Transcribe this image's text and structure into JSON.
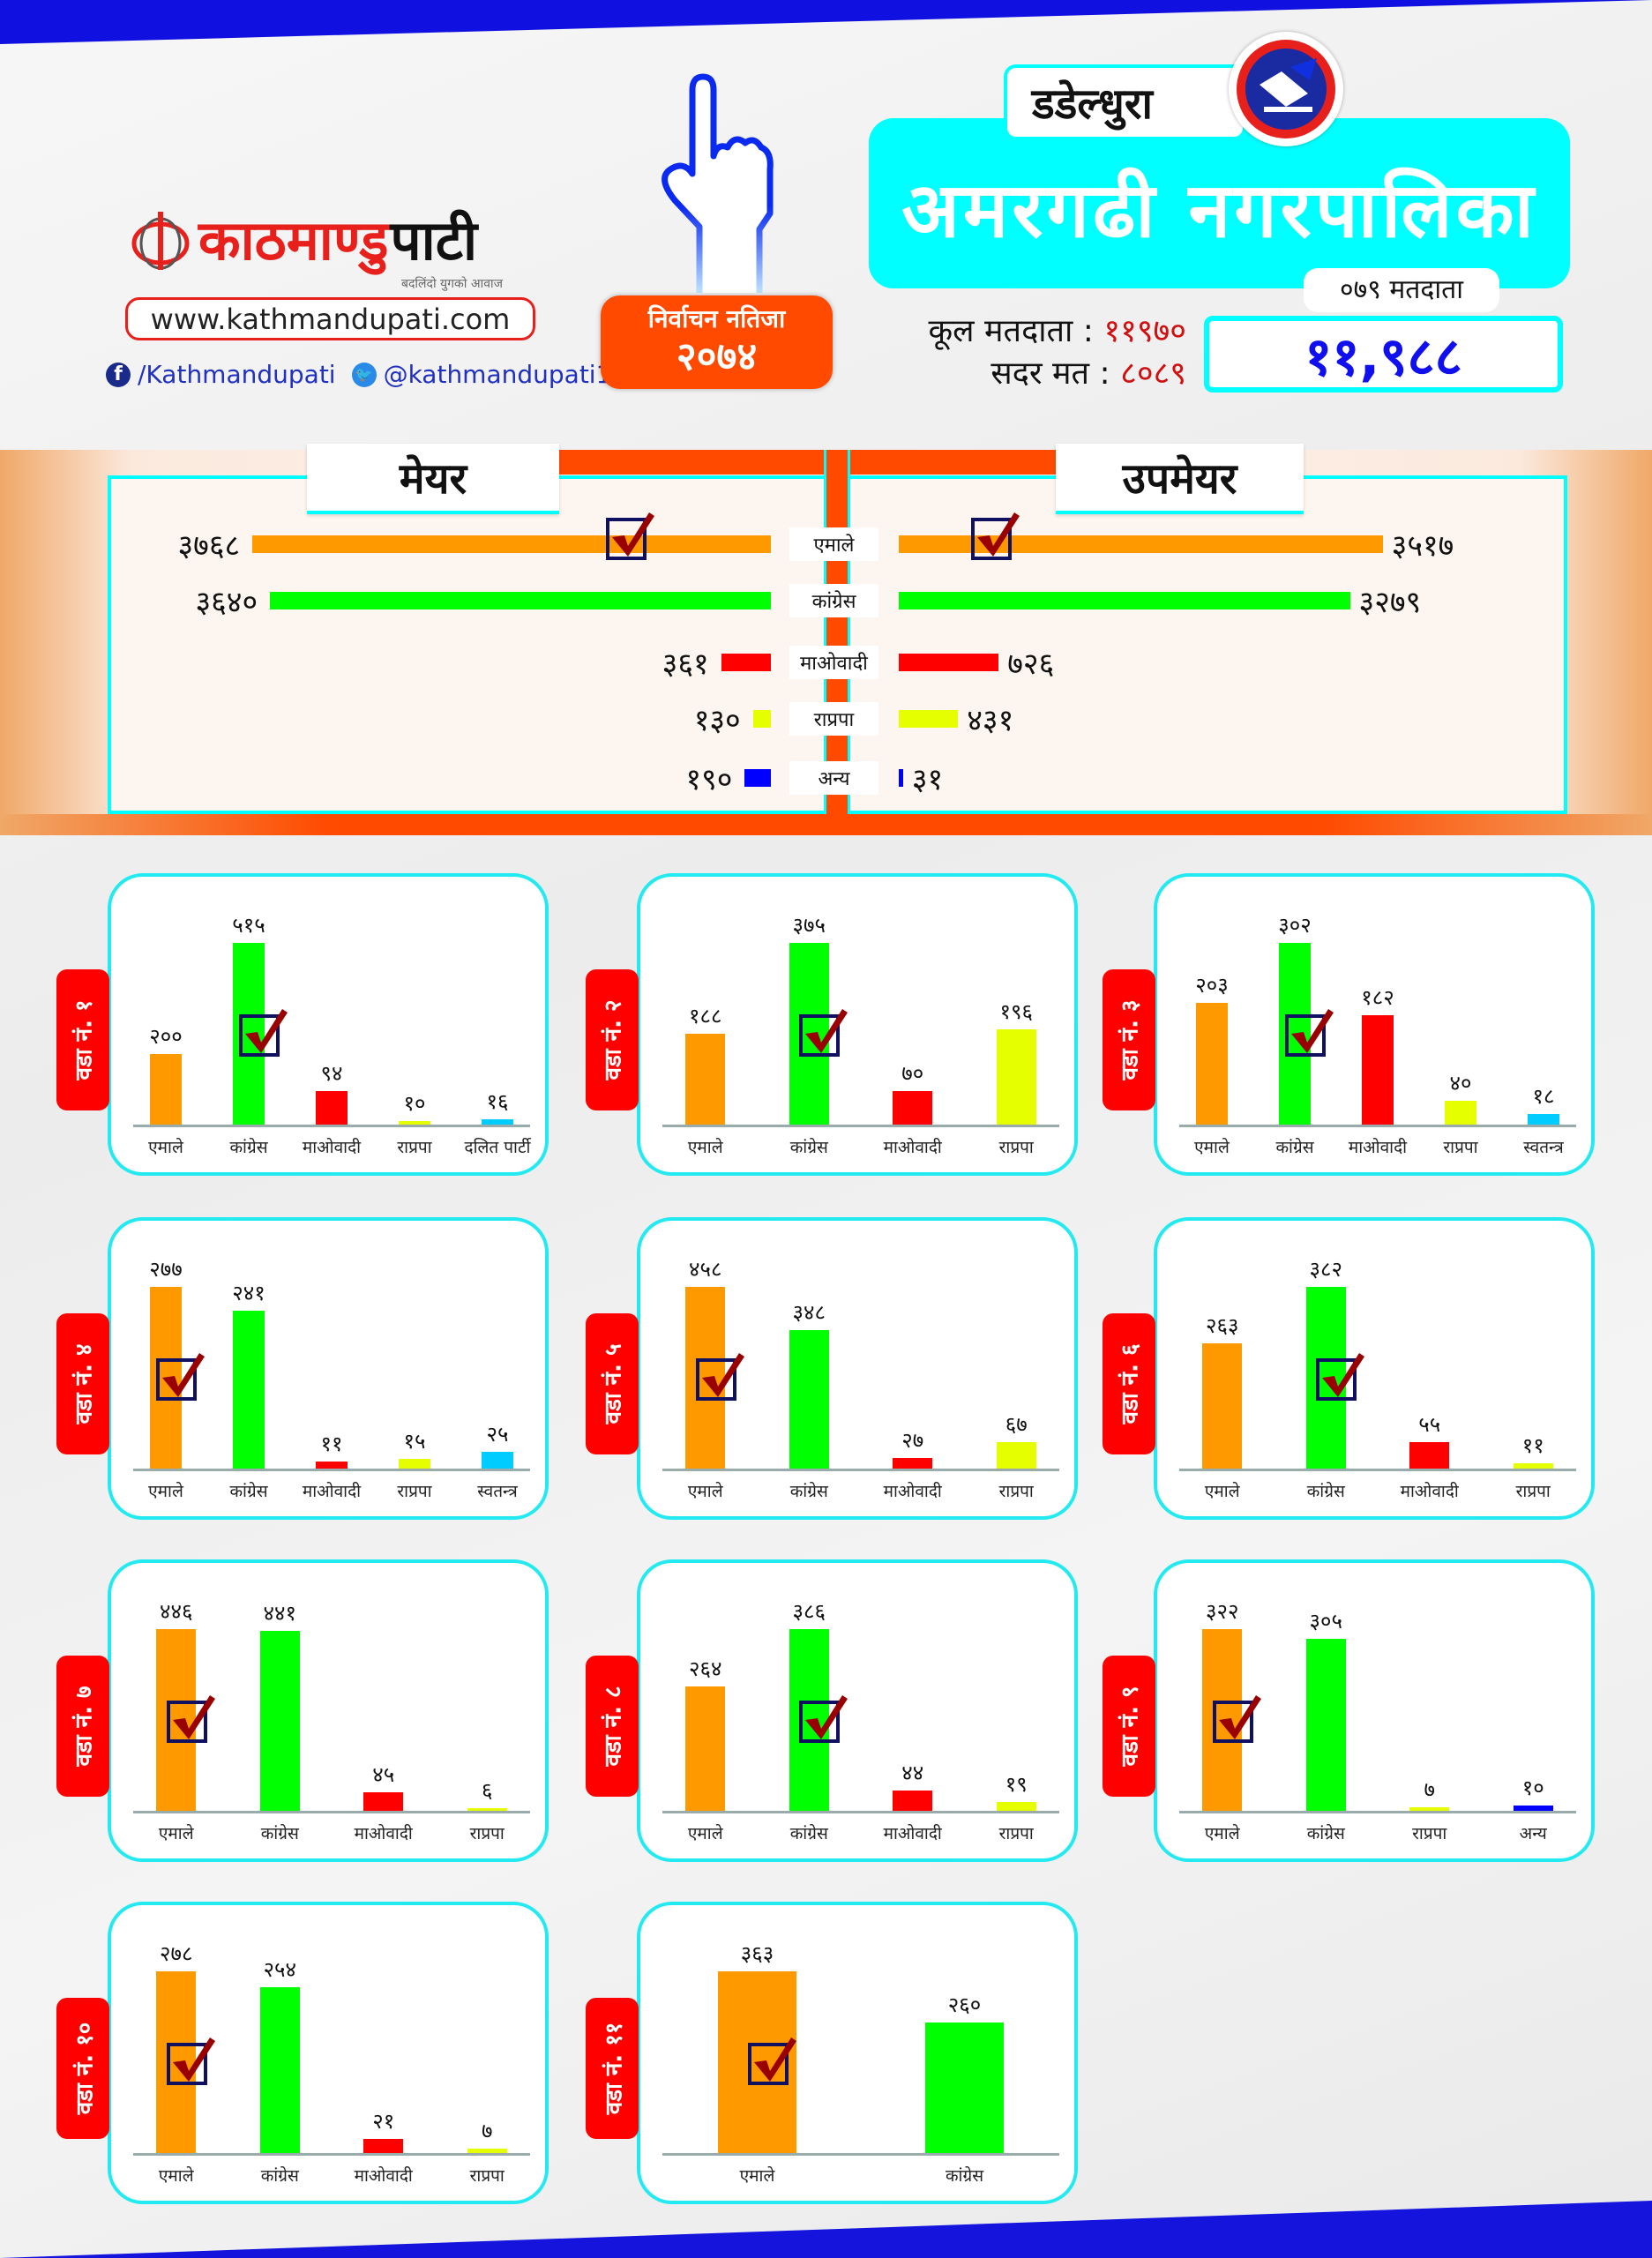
{
  "brand": {
    "logo_text_red": "काठमाण्डु",
    "logo_text_black": "पाटी",
    "tagline": "बदलिंदो युगको आवाज",
    "website": "www.kathmandupati.com",
    "facebook": "/Kathmandupati",
    "twitter": "@kathmandupati1"
  },
  "header": {
    "badge_line1": "निर्वाचन नतिजा",
    "badge_line2": "२०७४",
    "district": "डडेल्धुरा",
    "municipality": "अमरगढी नगरपालिका",
    "total_voters_label": "कूल मतदाता :",
    "total_voters_value": "११९७०",
    "valid_votes_label": "सदर मत :",
    "valid_votes_value": "८०८९",
    "voters079_label": "०७९ मतदाता",
    "voters079_value": "११,९८८"
  },
  "sections": {
    "mayor": "मेयर",
    "deputy_mayor": "उपमेयर"
  },
  "colors": {
    "एमाले": "#ff9900",
    "कांग्रेस": "#00ff00",
    "माओवादी": "#ff0000",
    "राप्रपा": "#e6ff00",
    "दलित पार्टी": "#00ccff",
    "स्वतन्त्र": "#00ccff",
    "अन्य": "#0000ff"
  },
  "chart_data": [
    {
      "type": "bar",
      "orientation": "horizontal",
      "title": "मेयर",
      "categories": [
        "एमाले",
        "कांग्रेस",
        "माओवादी",
        "राप्रपा",
        "अन्य"
      ],
      "values": [
        3768,
        3640,
        361,
        130,
        190
      ],
      "winner": 0
    },
    {
      "type": "bar",
      "orientation": "horizontal",
      "title": "उपमेयर",
      "categories": [
        "एमाले",
        "कांग्रेस",
        "माओवादी",
        "राप्रपा",
        "अन्य"
      ],
      "values": [
        3517,
        3279,
        726,
        431,
        31
      ],
      "winner": 0
    },
    {
      "type": "bar",
      "title": "वडा नं. १",
      "categories": [
        "एमाले",
        "कांग्रेस",
        "माओवादी",
        "राप्रपा",
        "दलित पार्टी"
      ],
      "values": [
        200,
        515,
        94,
        10,
        16
      ],
      "winner": 1
    },
    {
      "type": "bar",
      "title": "वडा नं. २",
      "categories": [
        "एमाले",
        "कांग्रेस",
        "माओवादी",
        "राप्रपा"
      ],
      "values": [
        188,
        375,
        70,
        196
      ],
      "winner": 1
    },
    {
      "type": "bar",
      "title": "वडा नं. ३",
      "categories": [
        "एमाले",
        "कांग्रेस",
        "माओवादी",
        "राप्रपा",
        "स्वतन्त्र"
      ],
      "values": [
        203,
        302,
        182,
        40,
        18
      ],
      "winner": 1
    },
    {
      "type": "bar",
      "title": "वडा नं. ४",
      "categories": [
        "एमाले",
        "कांग्रेस",
        "माओवादी",
        "राप्रपा",
        "स्वतन्त्र"
      ],
      "values": [
        277,
        241,
        11,
        15,
        25
      ],
      "winner": 0
    },
    {
      "type": "bar",
      "title": "वडा नं. ५",
      "categories": [
        "एमाले",
        "कांग्रेस",
        "माओवादी",
        "राप्रपा"
      ],
      "values": [
        458,
        348,
        27,
        67
      ],
      "winner": 0
    },
    {
      "type": "bar",
      "title": "वडा नं. ६",
      "categories": [
        "एमाले",
        "कांग्रेस",
        "माओवादी",
        "राप्रपा"
      ],
      "values": [
        263,
        382,
        55,
        11
      ],
      "winner": 1
    },
    {
      "type": "bar",
      "title": "वडा नं. ७",
      "categories": [
        "एमाले",
        "कांग्रेस",
        "माओवादी",
        "राप्रपा"
      ],
      "values": [
        446,
        441,
        45,
        6
      ],
      "winner": 0
    },
    {
      "type": "bar",
      "title": "वडा नं. ८",
      "categories": [
        "एमाले",
        "कांग्रेस",
        "माओवादी",
        "राप्रपा"
      ],
      "values": [
        264,
        386,
        44,
        19
      ],
      "winner": 1
    },
    {
      "type": "bar",
      "title": "वडा नं. ९",
      "categories": [
        "एमाले",
        "कांग्रेस",
        "राप्रपा",
        "अन्य"
      ],
      "values": [
        322,
        305,
        7,
        10
      ],
      "winner": 0
    },
    {
      "type": "bar",
      "title": "वडा नं. १०",
      "categories": [
        "एमाले",
        "कांग्रेस",
        "माओवादी",
        "राप्रपा"
      ],
      "values": [
        278,
        254,
        21,
        7
      ],
      "winner": 0
    },
    {
      "type": "bar",
      "title": "वडा नं. ११",
      "categories": [
        "एमाले",
        "कांग्रेस"
      ],
      "values": [
        363,
        260
      ],
      "winner": 0
    }
  ]
}
